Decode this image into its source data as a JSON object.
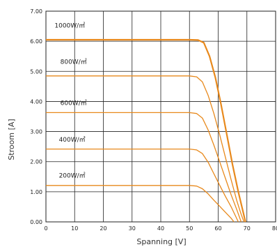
{
  "chart_data": {
    "type": "line",
    "xlabel": "Spanning [V]",
    "ylabel": "Stroom [A]",
    "xlim": [
      0,
      80
    ],
    "ylim": [
      0,
      7
    ],
    "x_ticks": [
      {
        "value": 0,
        "label": "0"
      },
      {
        "value": 10,
        "label": "10"
      },
      {
        "value": 20,
        "label": "20"
      },
      {
        "value": 30,
        "label": "30"
      },
      {
        "value": 40,
        "label": "40"
      },
      {
        "value": 50,
        "label": "50"
      },
      {
        "value": 60,
        "label": "60"
      },
      {
        "value": 70,
        "label": "70"
      },
      {
        "value": 80,
        "label": "80"
      }
    ],
    "y_ticks": [
      {
        "value": 0,
        "label": "0.00"
      },
      {
        "value": 1,
        "label": "1.00"
      },
      {
        "value": 2,
        "label": "2.00"
      },
      {
        "value": 3,
        "label": "3.00"
      },
      {
        "value": 4,
        "label": "4.00"
      },
      {
        "value": 5,
        "label": "5.00"
      },
      {
        "value": 6,
        "label": "6.00"
      },
      {
        "value": 7,
        "label": "7.00"
      }
    ],
    "grid": true,
    "line_color": "#e8891c",
    "series": [
      {
        "name": "1000W/㎡",
        "isc": 6.05,
        "voc": 69.5,
        "label_value": [
          3,
          6.45
        ],
        "points": [
          [
            0,
            6.05
          ],
          [
            50,
            6.05
          ],
          [
            53,
            6.04
          ],
          [
            55,
            5.95
          ],
          [
            57,
            5.5
          ],
          [
            59,
            4.8
          ],
          [
            61,
            3.9
          ],
          [
            63,
            2.9
          ],
          [
            65,
            1.9
          ],
          [
            67,
            1.0
          ],
          [
            68.5,
            0.4
          ],
          [
            69.5,
            0
          ]
        ]
      },
      {
        "name": "800W/㎡",
        "isc": 4.85,
        "voc": 69.0,
        "label_value": [
          5,
          5.25
        ],
        "points": [
          [
            0,
            4.85
          ],
          [
            50,
            4.85
          ],
          [
            52.5,
            4.82
          ],
          [
            54.5,
            4.65
          ],
          [
            56.5,
            4.2
          ],
          [
            58.5,
            3.6
          ],
          [
            60.5,
            2.9
          ],
          [
            62.5,
            2.15
          ],
          [
            64.5,
            1.4
          ],
          [
            66.5,
            0.7
          ],
          [
            68,
            0.25
          ],
          [
            69,
            0
          ]
        ]
      },
      {
        "name": "600W/㎡",
        "isc": 3.63,
        "voc": 68.0,
        "label_value": [
          5,
          3.88
        ],
        "points": [
          [
            0,
            3.63
          ],
          [
            50,
            3.63
          ],
          [
            52.5,
            3.6
          ],
          [
            54.5,
            3.45
          ],
          [
            56.5,
            3.05
          ],
          [
            58.5,
            2.55
          ],
          [
            60.5,
            2.0
          ],
          [
            62.5,
            1.45
          ],
          [
            64.5,
            0.9
          ],
          [
            66.5,
            0.4
          ],
          [
            68,
            0
          ]
        ]
      },
      {
        "name": "400W/㎡",
        "isc": 2.42,
        "voc": 67.0,
        "label_value": [
          4.5,
          2.67
        ],
        "points": [
          [
            0,
            2.42
          ],
          [
            50,
            2.42
          ],
          [
            52.5,
            2.39
          ],
          [
            54.5,
            2.27
          ],
          [
            56.5,
            1.98
          ],
          [
            58.5,
            1.6
          ],
          [
            60.5,
            1.22
          ],
          [
            62.5,
            0.85
          ],
          [
            64.5,
            0.5
          ],
          [
            66,
            0.2
          ],
          [
            67,
            0
          ]
        ]
      },
      {
        "name": "200W/㎡",
        "isc": 1.21,
        "voc": 65.5,
        "label_value": [
          4.5,
          1.47
        ],
        "points": [
          [
            0,
            1.21
          ],
          [
            50,
            1.21
          ],
          [
            52.5,
            1.19
          ],
          [
            54.5,
            1.1
          ],
          [
            56.5,
            0.93
          ],
          [
            58.5,
            0.72
          ],
          [
            60.5,
            0.52
          ],
          [
            62.5,
            0.32
          ],
          [
            64.5,
            0.12
          ],
          [
            65.5,
            0
          ]
        ]
      }
    ]
  }
}
